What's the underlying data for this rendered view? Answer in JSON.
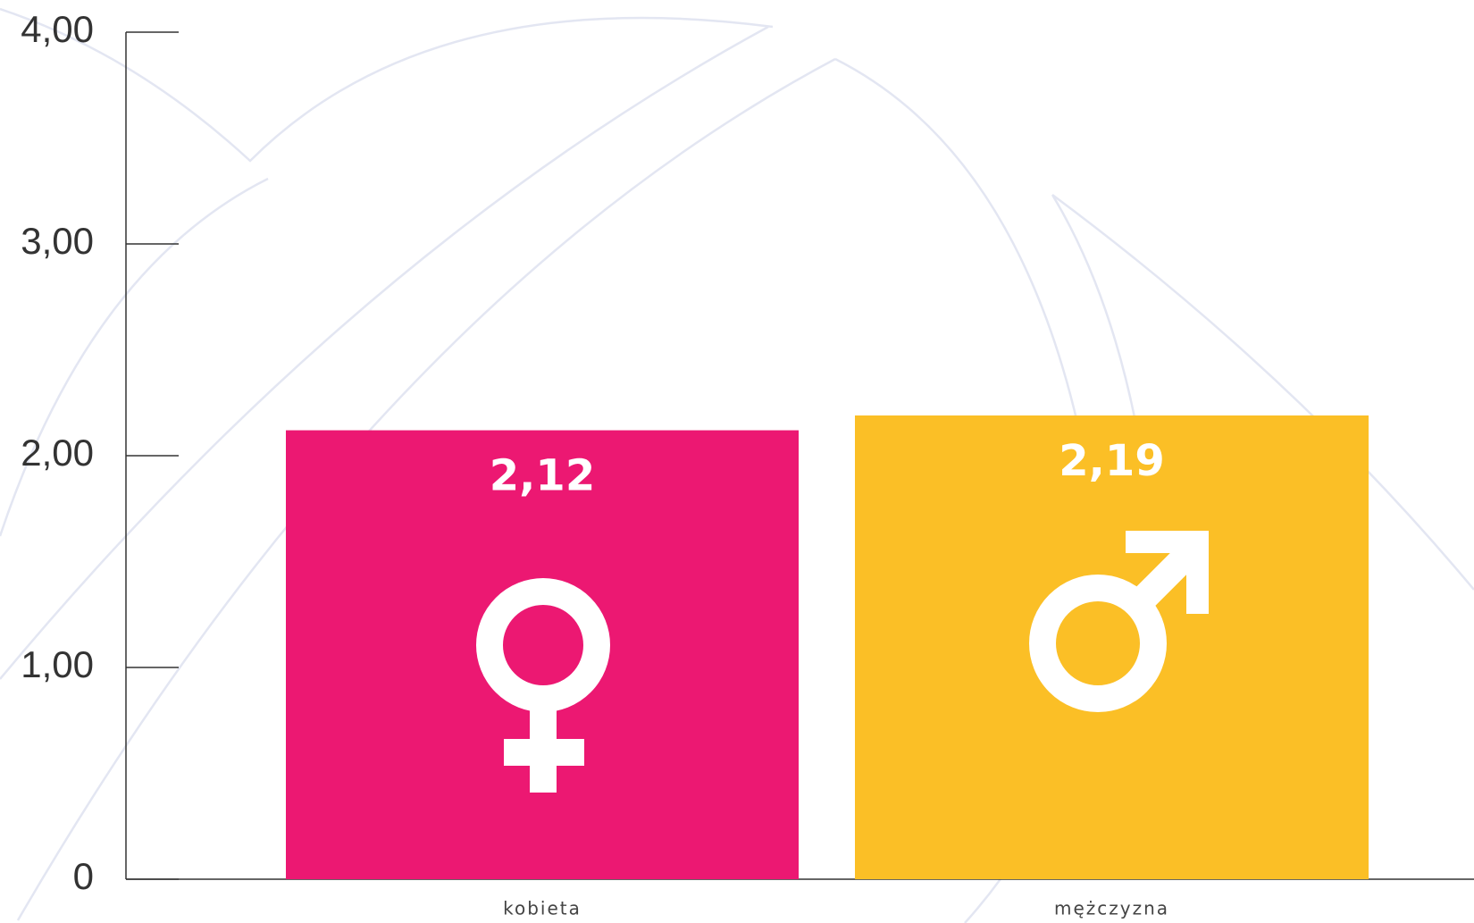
{
  "chart_data": {
    "type": "bar",
    "categories": [
      "kobieta",
      "mężczyzna"
    ],
    "values": [
      2.12,
      2.19
    ],
    "value_labels": [
      "2,12",
      "2,19"
    ],
    "colors": [
      "#ec1872",
      "#fbbf26"
    ],
    "ylim": [
      0,
      4
    ],
    "yticks": [
      0,
      {
        "value": 1,
        "label": "1,00"
      },
      {
        "value": 2,
        "label": "2,00"
      },
      {
        "value": 3,
        "label": "3,00"
      },
      {
        "value": 4,
        "label": "4,00"
      }
    ],
    "grid": false
  }
}
